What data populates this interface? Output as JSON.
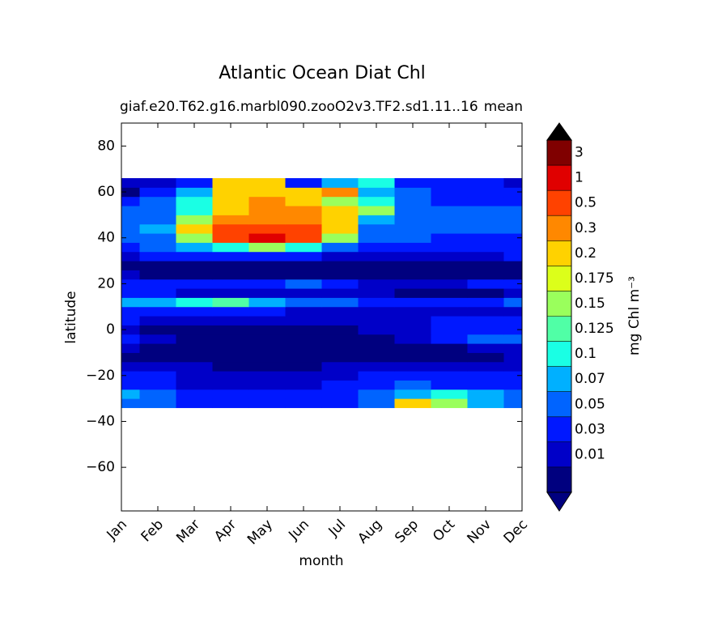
{
  "chart_data": {
    "type": "contourf",
    "title": "Atlantic Ocean Diat Chl",
    "subtitle": "giaf.e20.T62.g16.marbl090.zooO2v3.TF2.sd1.11..16",
    "subtitle_right": "mean",
    "x_label": "month",
    "y_label": "latitude",
    "categories": [
      "Jan",
      "Feb",
      "Mar",
      "Apr",
      "May",
      "Jun",
      "Jul",
      "Aug",
      "Sep",
      "Oct",
      "Nov",
      "Dec"
    ],
    "ylim": [
      -79,
      90
    ],
    "yticks": [
      {
        "value": -60,
        "label": "−60"
      },
      {
        "value": -40,
        "label": "−40"
      },
      {
        "value": -20,
        "label": "−20"
      },
      0,
      20,
      40,
      60,
      80
    ],
    "lat": [
      -32,
      -28,
      -24,
      -20,
      -16,
      -12,
      -8,
      -4,
      0,
      4,
      8,
      12,
      16,
      20,
      24,
      28,
      32,
      36,
      40,
      44,
      48,
      52,
      56,
      60,
      64
    ],
    "z": [
      [
        0.06,
        0.05,
        0.04,
        0.04,
        0.04,
        0.04,
        0.04,
        0.05,
        0.25,
        0.15,
        0.08,
        0.06
      ],
      [
        0.08,
        0.05,
        0.04,
        0.03,
        0.03,
        0.03,
        0.04,
        0.05,
        0.08,
        0.12,
        0.08,
        0.06
      ],
      [
        0.04,
        0.04,
        0.02,
        0.02,
        0.02,
        0.02,
        0.04,
        0.04,
        0.05,
        0.04,
        0.04,
        0.04
      ],
      [
        0.04,
        0.04,
        0.02,
        0.02,
        0.02,
        0.02,
        0.02,
        0.03,
        0.03,
        0.03,
        0.03,
        0.04
      ],
      [
        0.02,
        0.02,
        0.02,
        0.005,
        0.005,
        0.005,
        0.02,
        0.02,
        0.02,
        0.02,
        0.02,
        0.02
      ],
      [
        0.005,
        0.005,
        0.005,
        0.005,
        0.005,
        0.005,
        0.005,
        0.005,
        0.005,
        0.005,
        0.005,
        0.02
      ],
      [
        0.02,
        0.005,
        0.005,
        0.005,
        0.005,
        0.005,
        0.005,
        0.005,
        0.005,
        0.005,
        0.02,
        0.02
      ],
      [
        0.04,
        0.02,
        0.005,
        0.005,
        0.005,
        0.005,
        0.005,
        0.005,
        0.02,
        0.04,
        0.06,
        0.06
      ],
      [
        0.02,
        0.005,
        0.005,
        0.005,
        0.005,
        0.005,
        0.005,
        0.02,
        0.02,
        0.03,
        0.03,
        0.03
      ],
      [
        0.03,
        0.02,
        0.02,
        0.02,
        0.02,
        0.02,
        0.02,
        0.02,
        0.02,
        0.03,
        0.03,
        0.03
      ],
      [
        0.04,
        0.04,
        0.04,
        0.03,
        0.03,
        0.02,
        0.02,
        0.02,
        0.02,
        0.02,
        0.02,
        0.02
      ],
      [
        0.08,
        0.09,
        0.11,
        0.13,
        0.09,
        0.06,
        0.05,
        0.04,
        0.04,
        0.04,
        0.04,
        0.05
      ],
      [
        0.03,
        0.03,
        0.02,
        0.02,
        0.02,
        0.02,
        0.02,
        0.02,
        0.005,
        0.005,
        0.005,
        0.02
      ],
      [
        0.04,
        0.04,
        0.03,
        0.03,
        0.04,
        0.05,
        0.03,
        0.02,
        0.02,
        0.02,
        0.03,
        0.03
      ],
      [
        0.02,
        0.005,
        0.005,
        0.005,
        0.005,
        0.005,
        0.005,
        0.005,
        0.005,
        0.005,
        0.005,
        0.005
      ],
      [
        0.005,
        0.005,
        0.005,
        0.005,
        0.005,
        0.005,
        0.005,
        0.005,
        0.005,
        0.005,
        0.005,
        0.005
      ],
      [
        0.02,
        0.03,
        0.04,
        0.04,
        0.04,
        0.03,
        0.02,
        0.02,
        0.02,
        0.02,
        0.02,
        0.03
      ],
      [
        0.04,
        0.05,
        0.07,
        0.12,
        0.15,
        0.1,
        0.06,
        0.04,
        0.04,
        0.04,
        0.04,
        0.04
      ],
      [
        0.05,
        0.06,
        0.15,
        0.6,
        1.2,
        0.6,
        0.15,
        0.05,
        0.05,
        0.04,
        0.04,
        0.04
      ],
      [
        0.06,
        0.07,
        0.2,
        0.6,
        0.7,
        0.5,
        0.2,
        0.06,
        0.05,
        0.05,
        0.05,
        0.05
      ],
      [
        0.06,
        0.06,
        0.15,
        0.3,
        0.4,
        0.4,
        0.25,
        0.08,
        0.06,
        0.05,
        0.05,
        0.05
      ],
      [
        0.05,
        0.06,
        0.12,
        0.25,
        0.3,
        0.3,
        0.2,
        0.15,
        0.06,
        0.05,
        0.05,
        0.05
      ],
      [
        0.04,
        0.05,
        0.1,
        0.25,
        0.3,
        0.25,
        0.15,
        0.1,
        0.05,
        0.04,
        0.04,
        0.04
      ],
      [
        0.005,
        0.03,
        0.08,
        0.25,
        0.25,
        0.25,
        0.3,
        0.07,
        0.05,
        0.04,
        0.03,
        0.03
      ],
      [
        0.02,
        0.02,
        0.04,
        0.25,
        0.2,
        0.03,
        0.08,
        0.1,
        0.04,
        0.04,
        0.03,
        0.02
      ]
    ],
    "colorbar_label": "mg Chl m⁻³",
    "levels": [
      0.01,
      0.03,
      0.05,
      0.07,
      0.1,
      0.125,
      0.15,
      0.175,
      0.2,
      0.3,
      0.5,
      1,
      3
    ],
    "colors": [
      "#00007f",
      "#0000c8",
      "#0018ff",
      "#0064ff",
      "#00b0ff",
      "#1affe4",
      "#50ffa6",
      "#9aff5c",
      "#dcff1a",
      "#ffd200",
      "#ff8800",
      "#ff4200",
      "#e00000",
      "#800000"
    ]
  }
}
